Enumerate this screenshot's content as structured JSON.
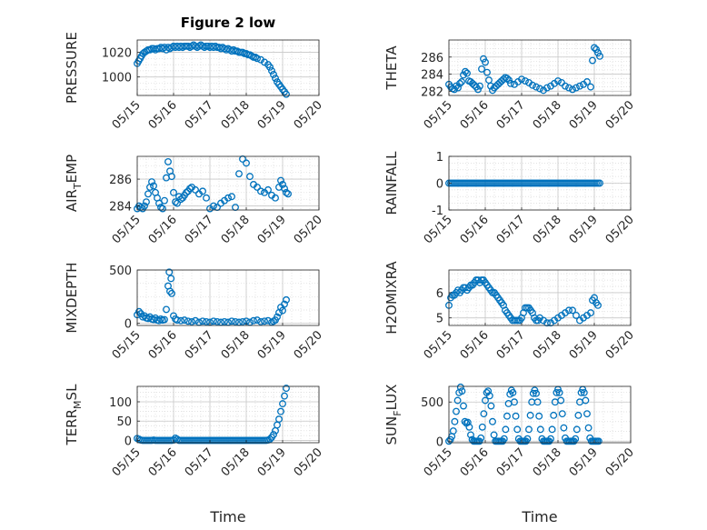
{
  "figure": {
    "title": "Figure 2 low",
    "xlabel": "Time"
  },
  "colors": {
    "marker": "#0072BD",
    "grid": "#d9d9d9",
    "axis": "#262626"
  },
  "chart_data": [
    {
      "type": "scatter",
      "name": "pressure",
      "ylabel": "PRESSURE",
      "xlim": [
        "05/15",
        "05/20"
      ],
      "xticks": [
        "05/15",
        "05/16",
        "05/17",
        "05/18",
        "05/19",
        "05/20"
      ],
      "ylim": [
        985,
        1030
      ],
      "yticks": [
        1000,
        1020
      ],
      "x": [
        0,
        0.04,
        0.08,
        0.12,
        0.16,
        0.2,
        0.25,
        0.3,
        0.35,
        0.4,
        0.45,
        0.5,
        0.55,
        0.6,
        0.65,
        0.7,
        0.75,
        0.8,
        0.85,
        0.9,
        0.95,
        1.0,
        1.05,
        1.1,
        1.15,
        1.2,
        1.25,
        1.3,
        1.35,
        1.4,
        1.45,
        1.5,
        1.55,
        1.6,
        1.65,
        1.7,
        1.75,
        1.8,
        1.85,
        1.9,
        1.95,
        2.0,
        2.05,
        2.1,
        2.15,
        2.2,
        2.25,
        2.3,
        2.35,
        2.4,
        2.45,
        2.5,
        2.55,
        2.6,
        2.65,
        2.7,
        2.75,
        2.8,
        2.85,
        2.9,
        2.95,
        3.0,
        3.05,
        3.1,
        3.15,
        3.2,
        3.25,
        3.3,
        3.4,
        3.5,
        3.6,
        3.65,
        3.7,
        3.75,
        3.8,
        3.85,
        3.9,
        3.95,
        4.0,
        4.05,
        4.1
      ],
      "y": [
        1011,
        1013,
        1015,
        1017,
        1019,
        1020,
        1021,
        1022,
        1022,
        1023,
        1023,
        1022,
        1023,
        1023,
        1024,
        1023,
        1024,
        1022,
        1024,
        1023,
        1024,
        1025,
        1024,
        1025,
        1024,
        1025,
        1024,
        1025,
        1025,
        1025,
        1024,
        1025,
        1026,
        1025,
        1024,
        1025,
        1026,
        1025,
        1024,
        1025,
        1025,
        1024,
        1025,
        1024,
        1025,
        1024,
        1024,
        1023,
        1024,
        1023,
        1022,
        1023,
        1022,
        1021,
        1022,
        1021,
        1021,
        1020,
        1020,
        1020,
        1019,
        1019,
        1018,
        1018,
        1017,
        1016,
        1016,
        1015,
        1014,
        1012,
        1010,
        1008,
        1005,
        1002,
        999,
        996,
        994,
        992,
        990,
        988,
        986
      ]
    },
    {
      "type": "scatter",
      "name": "theta",
      "ylabel": "THETA",
      "xlim": [
        "05/15",
        "05/20"
      ],
      "xticks": [
        "05/15",
        "05/16",
        "05/17",
        "05/18",
        "05/19",
        "05/20"
      ],
      "ylim": [
        281.5,
        288
      ],
      "yticks": [
        282,
        284,
        286
      ],
      "x": [
        0,
        0.05,
        0.1,
        0.15,
        0.2,
        0.25,
        0.3,
        0.35,
        0.4,
        0.45,
        0.5,
        0.55,
        0.6,
        0.65,
        0.7,
        0.75,
        0.8,
        0.85,
        0.9,
        0.95,
        1.0,
        1.05,
        1.1,
        1.15,
        1.2,
        1.25,
        1.3,
        1.35,
        1.4,
        1.45,
        1.5,
        1.55,
        1.6,
        1.65,
        1.7,
        1.8,
        1.9,
        2.0,
        2.1,
        2.2,
        2.3,
        2.4,
        2.5,
        2.6,
        2.7,
        2.8,
        2.9,
        3.0,
        3.1,
        3.2,
        3.3,
        3.4,
        3.5,
        3.6,
        3.7,
        3.8,
        3.9,
        3.95,
        4.0,
        4.05,
        4.1,
        4.15
      ],
      "y": [
        282.8,
        282.5,
        282.3,
        282.2,
        282.6,
        282.4,
        282.9,
        283.1,
        283.9,
        284.3,
        284.1,
        283.2,
        283.1,
        282.9,
        282.7,
        282.5,
        282.2,
        282.6,
        284.6,
        285.8,
        285.4,
        284.2,
        283.3,
        282.6,
        282.1,
        282.4,
        282.6,
        282.8,
        283.0,
        283.2,
        283.4,
        283.6,
        283.5,
        283.3,
        282.9,
        282.8,
        283.1,
        283.4,
        283.2,
        283.0,
        282.7,
        282.5,
        282.3,
        282.1,
        282.4,
        282.6,
        282.9,
        283.2,
        283.0,
        282.6,
        282.4,
        282.2,
        282.4,
        282.6,
        282.8,
        283.1,
        282.5,
        285.6,
        287.1,
        286.9,
        286.5,
        286.1
      ]
    },
    {
      "type": "scatter",
      "name": "air_temp",
      "ylabel": "AIR_TEMP",
      "ylabel_main": "AIR",
      "ylabel_sub": "T",
      "ylabel_rest": "EMP",
      "xlim": [
        "05/15",
        "05/20"
      ],
      "xticks": [
        "05/15",
        "05/16",
        "05/17",
        "05/18",
        "05/19",
        "05/20"
      ],
      "ylim": [
        283.7,
        287.7
      ],
      "yticks": [
        284,
        286
      ],
      "x": [
        0,
        0.05,
        0.1,
        0.15,
        0.2,
        0.25,
        0.3,
        0.35,
        0.4,
        0.45,
        0.5,
        0.55,
        0.6,
        0.65,
        0.7,
        0.75,
        0.8,
        0.85,
        0.9,
        0.95,
        1.0,
        1.05,
        1.1,
        1.15,
        1.2,
        1.25,
        1.3,
        1.35,
        1.4,
        1.45,
        1.5,
        1.6,
        1.7,
        1.8,
        1.9,
        2.0,
        2.1,
        2.2,
        2.3,
        2.4,
        2.5,
        2.6,
        2.7,
        2.8,
        2.9,
        3.0,
        3.1,
        3.2,
        3.3,
        3.4,
        3.5,
        3.6,
        3.7,
        3.8,
        3.9,
        3.95,
        4.0,
        4.05,
        4.1,
        4.15
      ],
      "y": [
        283.8,
        284.0,
        283.9,
        283.8,
        284.0,
        284.3,
        284.9,
        285.4,
        285.8,
        285.5,
        285.0,
        284.6,
        284.2,
        283.9,
        283.8,
        284.4,
        286.1,
        287.3,
        286.6,
        286.2,
        285.0,
        284.3,
        284.2,
        284.7,
        284.5,
        284.6,
        284.8,
        285.0,
        285.1,
        285.3,
        285.4,
        285.2,
        284.9,
        285.1,
        284.6,
        283.8,
        284.0,
        283.9,
        284.2,
        284.4,
        284.6,
        284.7,
        283.9,
        286.4,
        287.5,
        287.2,
        286.2,
        285.6,
        285.4,
        285.1,
        285.0,
        285.2,
        284.8,
        284.6,
        285.4,
        285.9,
        285.6,
        285.3,
        285.0,
        284.9
      ]
    },
    {
      "type": "scatter",
      "name": "rainfall",
      "ylabel": "RAINFALL",
      "xlim": [
        "05/15",
        "05/20"
      ],
      "xticks": [
        "05/15",
        "05/16",
        "05/17",
        "05/18",
        "05/19",
        "05/20"
      ],
      "ylim": [
        -1,
        1
      ],
      "yticks": [
        -1,
        0,
        1
      ],
      "x_range": [
        0,
        4.15
      ],
      "constant_value": 0,
      "count": 84
    },
    {
      "type": "scatter",
      "name": "mixdepth",
      "ylabel": "MIXDEPTH",
      "xlim": [
        "05/15",
        "05/20"
      ],
      "xticks": [
        "05/15",
        "05/16",
        "05/17",
        "05/18",
        "05/19",
        "05/20"
      ],
      "ylim": [
        -20,
        500
      ],
      "yticks": [
        0,
        500
      ],
      "x": [
        0,
        0.05,
        0.1,
        0.15,
        0.2,
        0.25,
        0.3,
        0.35,
        0.4,
        0.45,
        0.5,
        0.55,
        0.6,
        0.65,
        0.7,
        0.75,
        0.8,
        0.85,
        0.88,
        0.9,
        0.93,
        0.95,
        1.0,
        1.05,
        1.1,
        1.2,
        1.3,
        1.4,
        1.5,
        1.6,
        1.7,
        1.8,
        1.9,
        2.0,
        2.1,
        2.2,
        2.3,
        2.4,
        2.5,
        2.6,
        2.7,
        2.8,
        2.9,
        3.0,
        3.1,
        3.2,
        3.3,
        3.4,
        3.5,
        3.6,
        3.7,
        3.75,
        3.8,
        3.85,
        3.9,
        3.95,
        4.0,
        4.05,
        4.1
      ],
      "y": [
        80,
        110,
        90,
        60,
        70,
        50,
        45,
        60,
        40,
        35,
        50,
        30,
        25,
        40,
        30,
        35,
        130,
        350,
        480,
        300,
        420,
        280,
        70,
        40,
        30,
        25,
        30,
        20,
        15,
        25,
        10,
        20,
        15,
        10,
        20,
        15,
        10,
        15,
        10,
        20,
        15,
        10,
        15,
        20,
        10,
        25,
        30,
        15,
        20,
        25,
        10,
        20,
        30,
        60,
        100,
        150,
        120,
        180,
        220
      ]
    },
    {
      "type": "scatter",
      "name": "h2omixra",
      "ylabel": "H2OMIXRA",
      "xlim": [
        "05/15",
        "05/20"
      ],
      "xticks": [
        "05/15",
        "05/16",
        "05/17",
        "05/18",
        "05/19",
        "05/20"
      ],
      "ylim": [
        4.7,
        6.9
      ],
      "yticks": [
        5,
        6
      ],
      "x": [
        0,
        0.05,
        0.1,
        0.15,
        0.2,
        0.25,
        0.3,
        0.35,
        0.4,
        0.45,
        0.5,
        0.55,
        0.6,
        0.65,
        0.7,
        0.75,
        0.8,
        0.85,
        0.9,
        0.95,
        1.0,
        1.05,
        1.1,
        1.15,
        1.2,
        1.25,
        1.3,
        1.35,
        1.4,
        1.45,
        1.5,
        1.55,
        1.6,
        1.65,
        1.7,
        1.75,
        1.8,
        1.85,
        1.9,
        1.95,
        2.0,
        2.05,
        2.1,
        2.15,
        2.2,
        2.25,
        2.3,
        2.35,
        2.4,
        2.45,
        2.5,
        2.6,
        2.7,
        2.8,
        2.9,
        3.0,
        3.1,
        3.2,
        3.3,
        3.4,
        3.5,
        3.6,
        3.7,
        3.8,
        3.9,
        3.95,
        4.0,
        4.05,
        4.1
      ],
      "y": [
        5.5,
        5.8,
        5.9,
        5.9,
        6.0,
        6.1,
        6.0,
        6.1,
        6.2,
        6.2,
        6.1,
        6.2,
        6.3,
        6.3,
        6.4,
        6.5,
        6.5,
        6.4,
        6.5,
        6.5,
        6.4,
        6.3,
        6.2,
        6.1,
        6.0,
        6.0,
        5.9,
        5.8,
        5.7,
        5.6,
        5.5,
        5.3,
        5.2,
        5.1,
        5.0,
        4.9,
        4.9,
        4.9,
        4.9,
        4.9,
        5.0,
        5.2,
        5.4,
        5.4,
        5.4,
        5.3,
        5.2,
        5.0,
        4.9,
        4.9,
        5.0,
        4.9,
        4.8,
        4.8,
        4.9,
        5.0,
        5.1,
        5.2,
        5.3,
        5.3,
        5.1,
        4.9,
        5.0,
        5.1,
        5.2,
        5.7,
        5.8,
        5.6,
        5.5
      ]
    },
    {
      "type": "scatter",
      "name": "terr_msl",
      "ylabel": "TERR_MSL",
      "ylabel_main": "TERR",
      "ylabel_sub": "M",
      "ylabel_rest": "SL",
      "xlim": [
        "05/15",
        "05/20"
      ],
      "xticks": [
        "05/15",
        "05/16",
        "05/17",
        "05/18",
        "05/19",
        "05/20"
      ],
      "ylim": [
        -6,
        140
      ],
      "yticks": [
        0,
        50,
        100
      ],
      "x": [
        0,
        0.05,
        0.1,
        0.15,
        0.2,
        0.25,
        0.3,
        0.35,
        0.4,
        0.45,
        0.5,
        0.55,
        0.6,
        0.65,
        0.7,
        0.75,
        0.8,
        0.85,
        0.9,
        0.95,
        1.0,
        1.05,
        1.1,
        1.15,
        1.2,
        1.25,
        1.3,
        1.35,
        1.4,
        1.45,
        1.5,
        1.55,
        1.6,
        1.65,
        1.7,
        1.75,
        1.8,
        1.85,
        1.9,
        1.95,
        2.0,
        2.05,
        2.1,
        2.15,
        2.2,
        2.25,
        2.3,
        2.35,
        2.4,
        2.45,
        2.5,
        2.55,
        2.6,
        2.65,
        2.7,
        2.75,
        2.8,
        2.85,
        2.9,
        2.95,
        3.0,
        3.05,
        3.1,
        3.15,
        3.2,
        3.25,
        3.3,
        3.35,
        3.4,
        3.45,
        3.5,
        3.55,
        3.6,
        3.65,
        3.7,
        3.75,
        3.8,
        3.85,
        3.9,
        3.95,
        4.0,
        4.05,
        4.1
      ],
      "y": [
        5,
        3,
        1,
        0,
        0,
        0,
        0,
        0,
        0,
        1,
        0,
        0,
        0,
        0,
        0,
        0,
        0,
        0,
        0,
        0,
        1,
        6,
        3,
        0,
        0,
        0,
        0,
        0,
        0,
        0,
        0,
        0,
        0,
        0,
        0,
        0,
        0,
        0,
        0,
        0,
        0,
        0,
        0,
        0,
        0,
        0,
        0,
        0,
        0,
        0,
        0,
        0,
        0,
        0,
        0,
        0,
        0,
        0,
        0,
        0,
        0,
        0,
        0,
        0,
        0,
        0,
        0,
        0,
        0,
        0,
        0,
        0,
        1,
        3,
        8,
        15,
        25,
        40,
        55,
        75,
        95,
        115,
        135
      ]
    },
    {
      "type": "scatter",
      "name": "sun_flux",
      "ylabel": "SUN_FLUX",
      "ylabel_main": "SUN",
      "ylabel_sub": "F",
      "ylabel_rest": "LUX",
      "xlim": [
        "05/15",
        "05/20"
      ],
      "xticks": [
        "05/15",
        "05/16",
        "05/17",
        "05/18",
        "05/19",
        "05/20"
      ],
      "ylim": [
        -20,
        700
      ],
      "yticks": [
        0,
        500
      ],
      "x": [
        0,
        0.04,
        0.08,
        0.12,
        0.16,
        0.2,
        0.24,
        0.28,
        0.32,
        0.36,
        0.4,
        0.44,
        0.48,
        0.52,
        0.56,
        0.6,
        0.64,
        0.68,
        0.72,
        0.76,
        0.8,
        0.84,
        0.88,
        0.92,
        0.96,
        1.0,
        1.04,
        1.08,
        1.12,
        1.16,
        1.2,
        1.24,
        1.28,
        1.32,
        1.36,
        1.4,
        1.44,
        1.48,
        1.52,
        1.56,
        1.6,
        1.64,
        1.68,
        1.72,
        1.76,
        1.8,
        1.84,
        1.88,
        1.92,
        1.96,
        2.0,
        2.04,
        2.08,
        2.12,
        2.16,
        2.2,
        2.24,
        2.28,
        2.32,
        2.36,
        2.4,
        2.44,
        2.48,
        2.52,
        2.56,
        2.6,
        2.64,
        2.68,
        2.72,
        2.76,
        2.8,
        2.84,
        2.88,
        2.92,
        2.96,
        3.0,
        3.04,
        3.08,
        3.12,
        3.16,
        3.2,
        3.24,
        3.28,
        3.32,
        3.36,
        3.4,
        3.44,
        3.48,
        3.52,
        3.56,
        3.6,
        3.64,
        3.68,
        3.72,
        3.76,
        3.8,
        3.84,
        3.88,
        3.92,
        3.96,
        4.0,
        4.04,
        4.08,
        4.12
      ],
      "y": [
        0,
        20,
        60,
        130,
        250,
        380,
        520,
        620,
        690,
        640,
        450,
        250,
        230,
        240,
        180,
        80,
        20,
        0,
        0,
        0,
        0,
        0,
        40,
        180,
        350,
        520,
        620,
        640,
        580,
        450,
        250,
        80,
        0,
        0,
        0,
        0,
        0,
        0,
        30,
        150,
        320,
        480,
        600,
        650,
        620,
        500,
        320,
        150,
        30,
        0,
        0,
        0,
        0,
        0,
        30,
        150,
        330,
        500,
        610,
        650,
        610,
        500,
        320,
        150,
        30,
        0,
        0,
        0,
        0,
        0,
        30,
        150,
        330,
        500,
        620,
        660,
        620,
        520,
        350,
        170,
        40,
        0,
        0,
        0,
        0,
        0,
        0,
        30,
        150,
        330,
        500,
        620,
        660,
        620,
        520,
        350,
        170,
        40,
        0,
        0,
        0,
        0,
        0,
        0
      ]
    }
  ]
}
